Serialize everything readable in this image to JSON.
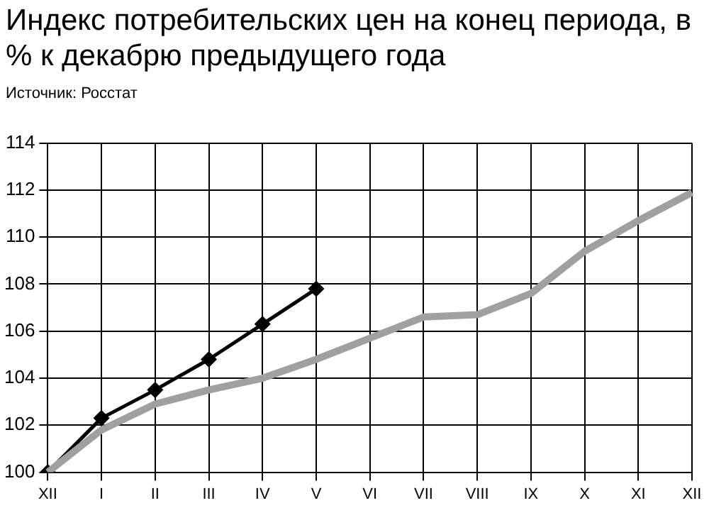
{
  "chart_data": {
    "type": "line",
    "title": "Индекс потребительских цен на конец периода, в % к декабрю предыдущего года",
    "annotations": [
      "Источник: Росстат"
    ],
    "categories": [
      "XII",
      "I",
      "II",
      "III",
      "IV",
      "V",
      "VI",
      "VII",
      "VIII",
      "IX",
      "X",
      "XI",
      "XII"
    ],
    "series": [
      {
        "color": "#a0a0a0",
        "marker": "none",
        "values": [
          100,
          101.8,
          102.9,
          103.5,
          104.0,
          104.8,
          105.7,
          106.6,
          106.7,
          107.6,
          109.4,
          110.7,
          111.9
        ]
      },
      {
        "color": "#000000",
        "marker": "diamond",
        "values": [
          100,
          102.3,
          103.5,
          104.8,
          106.3,
          107.8,
          null,
          null,
          null,
          null,
          null,
          null,
          null
        ]
      }
    ],
    "ylim": [
      100,
      114
    ],
    "yticks": [
      100,
      102,
      104,
      106,
      108,
      110,
      112,
      114
    ],
    "grid": true,
    "legend": false
  }
}
